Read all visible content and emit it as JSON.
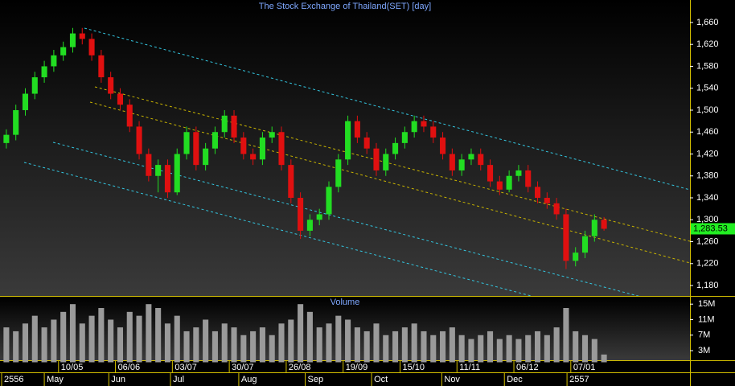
{
  "chart_data": {
    "type": "candlestick",
    "title": "The Stock Exchange of Thailand(SET) [day]",
    "up_color": "#22dd22",
    "down_color": "#e01010",
    "open": [
      1440,
      1455,
      1500,
      1530,
      1560,
      1580,
      1600,
      1615,
      1640,
      1630,
      1600,
      1560,
      1530,
      1510,
      1470,
      1420,
      1380,
      1400,
      1350,
      1420,
      1460,
      1400,
      1430,
      1460,
      1490,
      1450,
      1420,
      1410,
      1450,
      1460,
      1400,
      1340,
      1280,
      1300,
      1310,
      1360,
      1410,
      1480,
      1450,
      1430,
      1390,
      1420,
      1440,
      1460,
      1480,
      1470,
      1450,
      1420,
      1390,
      1410,
      1420,
      1400,
      1370,
      1355,
      1380,
      1390,
      1360,
      1340,
      1330,
      1310,
      1225,
      1240,
      1270,
      1300
    ],
    "high": [
      1465,
      1510,
      1540,
      1570,
      1590,
      1610,
      1625,
      1650,
      1650,
      1640,
      1610,
      1570,
      1540,
      1520,
      1480,
      1430,
      1410,
      1410,
      1430,
      1470,
      1470,
      1440,
      1470,
      1500,
      1500,
      1460,
      1430,
      1460,
      1470,
      1470,
      1410,
      1350,
      1310,
      1320,
      1370,
      1420,
      1490,
      1490,
      1460,
      1440,
      1430,
      1450,
      1470,
      1490,
      1490,
      1480,
      1460,
      1430,
      1420,
      1430,
      1430,
      1410,
      1380,
      1390,
      1400,
      1400,
      1370,
      1350,
      1340,
      1320,
      1250,
      1280,
      1310,
      1305
    ],
    "low": [
      1430,
      1445,
      1490,
      1520,
      1550,
      1570,
      1590,
      1605,
      1620,
      1590,
      1550,
      1520,
      1500,
      1460,
      1410,
      1370,
      1350,
      1340,
      1345,
      1410,
      1390,
      1390,
      1420,
      1450,
      1440,
      1410,
      1400,
      1400,
      1440,
      1390,
      1330,
      1265,
      1270,
      1290,
      1300,
      1350,
      1400,
      1440,
      1420,
      1380,
      1380,
      1410,
      1430,
      1450,
      1460,
      1440,
      1410,
      1380,
      1380,
      1400,
      1390,
      1360,
      1345,
      1350,
      1370,
      1350,
      1330,
      1320,
      1300,
      1210,
      1215,
      1230,
      1260,
      1280
    ],
    "close": [
      1455,
      1500,
      1530,
      1560,
      1580,
      1600,
      1615,
      1640,
      1630,
      1600,
      1560,
      1530,
      1510,
      1470,
      1420,
      1380,
      1400,
      1350,
      1420,
      1460,
      1400,
      1430,
      1460,
      1490,
      1450,
      1420,
      1410,
      1450,
      1460,
      1400,
      1340,
      1280,
      1300,
      1310,
      1360,
      1410,
      1480,
      1450,
      1430,
      1390,
      1420,
      1440,
      1460,
      1480,
      1470,
      1450,
      1420,
      1390,
      1410,
      1420,
      1400,
      1370,
      1355,
      1380,
      1390,
      1360,
      1340,
      1330,
      1310,
      1225,
      1240,
      1270,
      1300,
      1283.53
    ],
    "last_label": "1,283.53",
    "xlim": [
      0,
      64
    ],
    "ylim": [
      1161,
      1701
    ],
    "yticks": [
      {
        "value": 1180,
        "label": "1,180"
      },
      {
        "value": 1220,
        "label": "1,220"
      },
      {
        "value": 1260,
        "label": "1,260"
      },
      {
        "value": 1300,
        "label": "1,300"
      },
      {
        "value": 1340,
        "label": "1,340"
      },
      {
        "value": 1380,
        "label": "1,380"
      },
      {
        "value": 1420,
        "label": "1,420"
      },
      {
        "value": 1460,
        "label": "1,460"
      },
      {
        "value": 1500,
        "label": "1,500"
      },
      {
        "value": 1540,
        "label": "1,540"
      },
      {
        "value": 1580,
        "label": "1,580"
      },
      {
        "value": 1620,
        "label": "1,620"
      },
      {
        "value": 1660,
        "label": "1,660"
      }
    ],
    "xticks": [
      {
        "value": 6,
        "label": "10/05"
      },
      {
        "value": 12,
        "label": "06/06"
      },
      {
        "value": 18,
        "label": "03/07"
      },
      {
        "value": 24,
        "label": "30/07"
      },
      {
        "value": 30,
        "label": "26/08"
      },
      {
        "value": 36,
        "label": "19/09"
      },
      {
        "value": 42,
        "label": "15/10"
      },
      {
        "value": 48,
        "label": "11/11"
      },
      {
        "value": 54,
        "label": "06/12"
      },
      {
        "value": 60,
        "label": "07/01"
      }
    ],
    "period_ticks": [
      {
        "value": 0,
        "label": "2556"
      },
      {
        "value": 4.5,
        "label": "May"
      },
      {
        "value": 11.3,
        "label": "Jun"
      },
      {
        "value": 17.8,
        "label": "Jul"
      },
      {
        "value": 25,
        "label": "Aug"
      },
      {
        "value": 32,
        "label": "Sep"
      },
      {
        "value": 39,
        "label": "Oct"
      },
      {
        "value": 46.4,
        "label": "Nov"
      },
      {
        "value": 53,
        "label": "Dec"
      },
      {
        "value": 59.6,
        "label": "2557"
      }
    ],
    "volume": {
      "title": "Volume",
      "color": "#9a9a9a",
      "values": [
        9000000,
        8000000,
        10000000,
        12000000,
        9000000,
        11000000,
        13000000,
        15000000,
        10000000,
        12000000,
        14000000,
        11000000,
        9000000,
        13000000,
        12000000,
        15000000,
        14000000,
        10000000,
        12000000,
        8000000,
        9000000,
        11000000,
        8000000,
        10000000,
        9000000,
        7000000,
        8000000,
        9000000,
        7000000,
        10000000,
        11000000,
        15000000,
        13000000,
        9000000,
        10000000,
        12000000,
        11000000,
        9000000,
        8000000,
        10000000,
        7000000,
        8000000,
        9000000,
        10000000,
        8000000,
        7000000,
        8000000,
        9000000,
        7000000,
        6000000,
        7000000,
        8000000,
        6000000,
        7000000,
        6000000,
        7000000,
        8000000,
        7000000,
        9000000,
        14000000,
        8000000,
        7000000,
        6000000,
        2000000
      ],
      "ylim": [
        0,
        16700000
      ],
      "yticks": [
        {
          "value": 3000000,
          "label": "3M"
        },
        {
          "value": 7000000,
          "label": "7M"
        },
        {
          "value": 11000000,
          "label": "11M"
        },
        {
          "value": 15000000,
          "label": "15M"
        }
      ]
    }
  }
}
